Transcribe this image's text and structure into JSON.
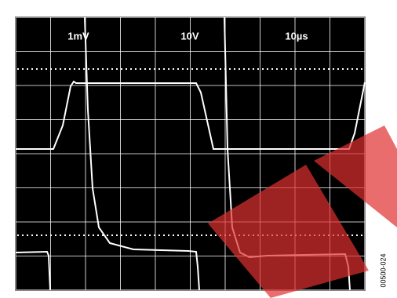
{
  "channel_labels": [
    "1mV",
    "10V",
    "10µs"
  ],
  "figure_id": "00500-024"
}
